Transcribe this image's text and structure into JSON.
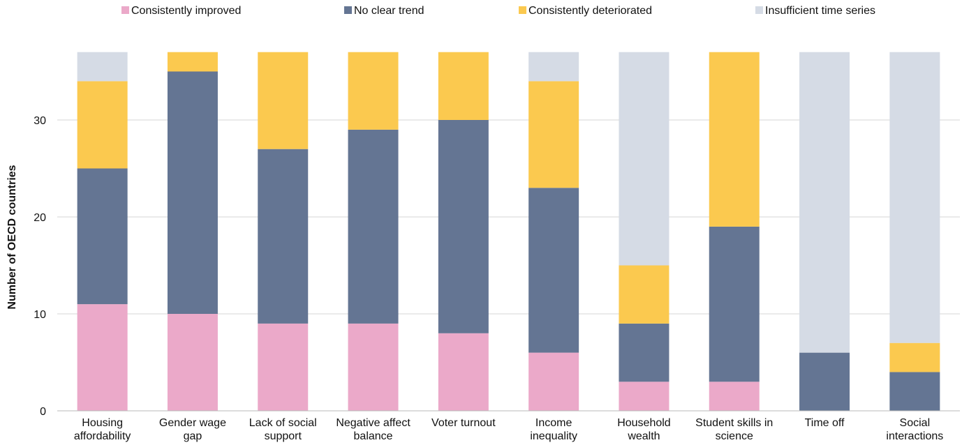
{
  "chart_data": {
    "type": "bar",
    "stacked": true,
    "title": "",
    "xlabel": "",
    "ylabel": "Number of OECD countries",
    "ylim": [
      0,
      40
    ],
    "yticks": [
      0,
      10,
      20,
      30
    ],
    "grid": true,
    "legend_position": "top",
    "categories": [
      [
        "Housing",
        "affordability"
      ],
      [
        "Gender wage",
        "gap"
      ],
      [
        "Lack of social",
        "support"
      ],
      [
        "Negative affect",
        "balance"
      ],
      [
        "Voter turnout"
      ],
      [
        "Income",
        "inequality"
      ],
      [
        "Household",
        "wealth"
      ],
      [
        "Student skills in",
        "science"
      ],
      [
        "Time off"
      ],
      [
        "Social",
        "interactions"
      ]
    ],
    "series": [
      {
        "name": "Consistently improved",
        "color": "#eba9c9",
        "values": [
          11,
          10,
          9,
          9,
          8,
          6,
          3,
          3,
          0,
          0
        ]
      },
      {
        "name": "No clear trend",
        "color": "#647593",
        "values": [
          14,
          25,
          18,
          20,
          22,
          17,
          6,
          16,
          6,
          4
        ]
      },
      {
        "name": "Consistently deteriorated",
        "color": "#fbc94f",
        "values": [
          9,
          2,
          10,
          8,
          7,
          11,
          6,
          18,
          0,
          3
        ]
      },
      {
        "name": "Insufficient time series",
        "color": "#d5dbe5",
        "values": [
          3,
          0,
          0,
          0,
          0,
          3,
          22,
          0,
          31,
          30
        ]
      }
    ]
  }
}
